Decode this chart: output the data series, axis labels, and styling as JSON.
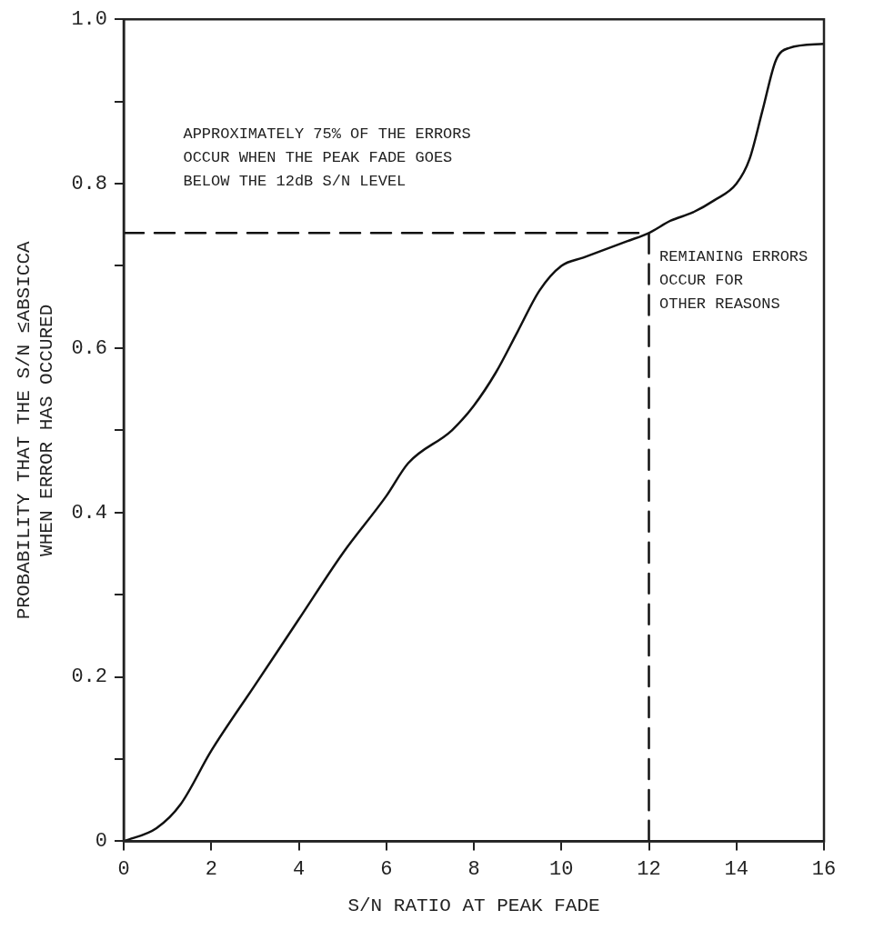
{
  "chart_data": {
    "type": "line",
    "xlabel": "S/N RATIO AT PEAK FADE",
    "ylabel": "PROBABILITY THAT THE S/N ≤ABSICCA\nWHEN ERROR HAS OCCURED",
    "xlim": [
      0,
      16
    ],
    "xticks": [
      0,
      2,
      4,
      6,
      8,
      10,
      12,
      14,
      16
    ],
    "ylim": [
      0,
      1
    ],
    "yticks": [
      0,
      {
        "value": 0.1,
        "label": null
      },
      0.2,
      {
        "value": 0.3,
        "label": null
      },
      0.4,
      {
        "value": 0.5,
        "label": null
      },
      0.6,
      {
        "value": 0.7,
        "label": null
      },
      0.8,
      {
        "value": 0.9,
        "label": null
      },
      {
        "value": 1,
        "label": "1.0"
      }
    ],
    "grid": false,
    "legend": false,
    "marker": "none",
    "series": [
      {
        "color": "#111111",
        "line_style": "solid",
        "x": [
          0,
          0.75,
          1.3,
          2,
          3,
          4,
          5,
          6,
          6.5,
          7.5,
          8,
          8.5,
          9,
          9.5,
          10,
          10.5,
          11,
          11.5,
          12,
          12.5,
          13,
          13.5,
          14,
          14.3,
          14.6,
          14.9,
          15.2,
          16
        ],
        "values": [
          0,
          0.016,
          0.045,
          0.11,
          0.19,
          0.27,
          0.35,
          0.42,
          0.46,
          0.5,
          0.53,
          0.57,
          0.62,
          0.67,
          0.7,
          0.71,
          0.72,
          0.73,
          0.74,
          0.755,
          0.765,
          0.78,
          0.8,
          0.83,
          0.89,
          0.95,
          0.965,
          0.97
        ]
      },
      {
        "color": "#111111",
        "line_style": "dashed",
        "x": [
          0,
          12,
          12
        ],
        "values": [
          0.74,
          0.74,
          0
        ]
      }
    ],
    "annotations": [
      "APPROXIMATELY 75% OF THE ERRORS\nOCCUR WHEN THE PEAK FADE GOES\nBELOW THE 12dB S/N LEVEL",
      "REMIANING ERRORS\nOCCUR FOR\nOTHER REASONS"
    ]
  }
}
